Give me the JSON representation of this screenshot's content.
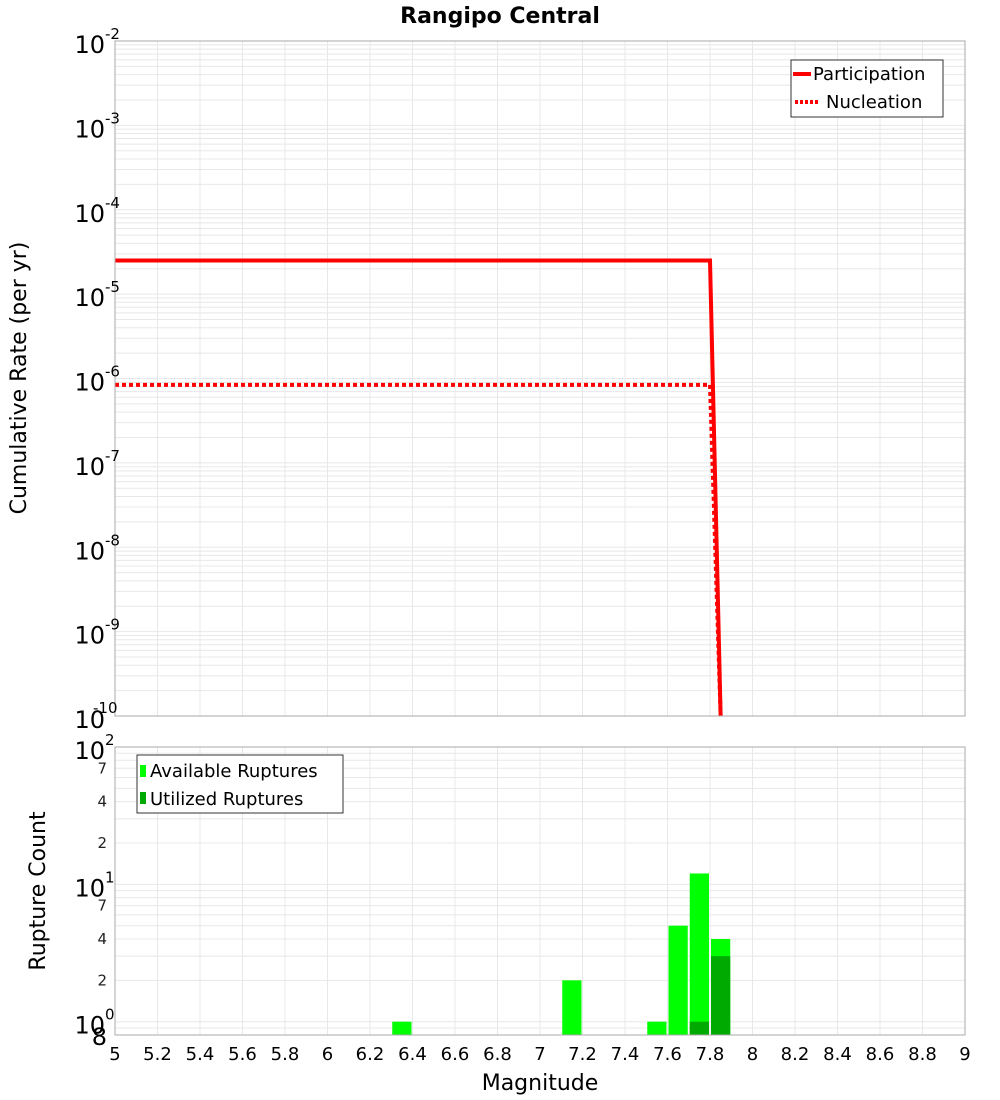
{
  "title": "Rangipo Central",
  "top_chart": {
    "ylabel": "Cumulative Rate (per yr)",
    "y_ticks": [
      {
        "base": "10",
        "exp": "-2"
      },
      {
        "base": "10",
        "exp": "-3"
      },
      {
        "base": "10",
        "exp": "-4"
      },
      {
        "base": "10",
        "exp": "-5"
      },
      {
        "base": "10",
        "exp": "-6"
      },
      {
        "base": "10",
        "exp": "-7"
      },
      {
        "base": "10",
        "exp": "-8"
      },
      {
        "base": "10",
        "exp": "-9"
      },
      {
        "base": "10",
        "exp": "-10"
      }
    ],
    "legend": [
      {
        "label": "Participation",
        "style": "solid",
        "color": "#ff0000"
      },
      {
        "label": "Nucleation",
        "style": "dotted",
        "color": "#ff0000"
      }
    ]
  },
  "bottom_chart": {
    "ylabel": "Rupture Count",
    "y_major_ticks": [
      {
        "base": "10",
        "exp": "2"
      },
      {
        "base": "10",
        "exp": "1"
      },
      {
        "base": "10",
        "exp": "0"
      }
    ],
    "y_minor_ticks": [
      "7",
      "4",
      "2",
      "7",
      "4",
      "2",
      "8"
    ],
    "legend": [
      {
        "label": "Available Ruptures",
        "color": "#00ff00"
      },
      {
        "label": "Utilized Ruptures",
        "color": "#00aa00"
      }
    ]
  },
  "xlabel": "Magnitude",
  "x_ticks": [
    "5",
    "5.2",
    "5.4",
    "5.6",
    "5.8",
    "6",
    "6.2",
    "6.4",
    "6.6",
    "6.8",
    "7",
    "7.2",
    "7.4",
    "7.6",
    "7.8",
    "8",
    "8.2",
    "8.4",
    "8.6",
    "8.8",
    "9"
  ],
  "chart_data": [
    {
      "type": "line",
      "title": "Rangipo Central",
      "xlabel": "Magnitude",
      "ylabel": "Cumulative Rate (per yr)",
      "xlim": [
        5,
        9
      ],
      "ylim": [
        1e-10,
        0.01
      ],
      "yscale": "log",
      "grid": true,
      "legend_position": "top-right",
      "series": [
        {
          "name": "Participation",
          "style": "solid",
          "color": "#ff0000",
          "x": [
            5.0,
            7.8,
            7.85
          ],
          "y": [
            2.5e-05,
            2.5e-05,
            1e-10
          ]
        },
        {
          "name": "Nucleation",
          "style": "dotted",
          "color": "#ff0000",
          "x": [
            5.0,
            7.8,
            7.85
          ],
          "y": [
            8.4e-07,
            8.4e-07,
            1e-10
          ]
        }
      ]
    },
    {
      "type": "bar",
      "xlabel": "Magnitude",
      "ylabel": "Rupture Count",
      "xlim": [
        5,
        9
      ],
      "ylim": [
        0.8,
        100
      ],
      "yscale": "log",
      "grid": true,
      "legend_position": "top-left",
      "bin_width": 0.1,
      "categories": [
        6.35,
        7.15,
        7.55,
        7.65,
        7.75,
        7.85
      ],
      "series": [
        {
          "name": "Available Ruptures",
          "color": "#00ff00",
          "values": [
            1,
            2,
            1,
            5,
            12,
            4
          ]
        },
        {
          "name": "Utilized Ruptures",
          "color": "#00aa00",
          "values": [
            0,
            0,
            0,
            0,
            1,
            3
          ]
        }
      ]
    }
  ]
}
